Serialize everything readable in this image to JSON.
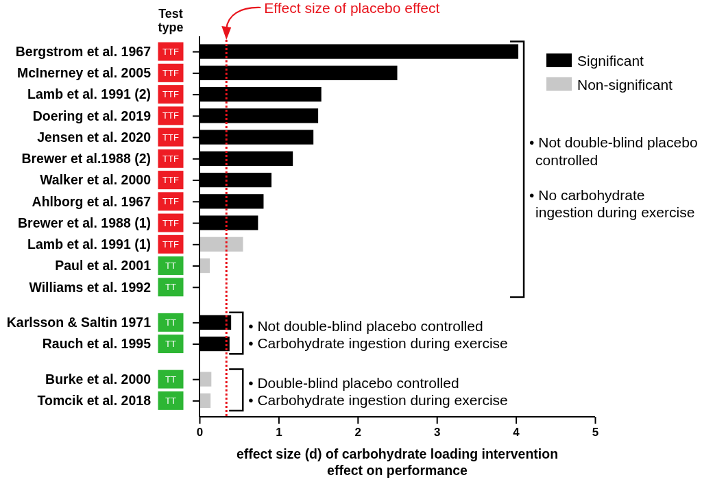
{
  "chart_data": {
    "type": "bar",
    "orientation": "horizontal",
    "stacked": true,
    "categories": [
      "Bergstrom et al. 1967",
      "McInerney et al. 2005",
      "Lamb et al. 1991 (2)",
      "Doering et al. 2019",
      "Jensen et al. 2020",
      "Brewer et al.1988 (2)",
      "Walker et al. 2000",
      "Ahlborg et al. 1967",
      "Brewer et al. 1988 (1)",
      "Lamb et al. 1991 (1)",
      "Paul et al. 2001",
      "Williams et al. 1992",
      null,
      "Karlsson & Saltin 1971",
      "Rauch et al. 1995",
      null,
      "Burke et al. 2000",
      "Tomcik et al. 2018"
    ],
    "y2_categories": [
      "TTF",
      "TTF",
      "TTF",
      "TTF",
      "TTF",
      "TTF",
      "TTF",
      "TTF",
      "TTF",
      "TTF",
      "TT",
      "TT",
      null,
      "TT",
      "TT",
      null,
      "TT",
      "TT"
    ],
    "y2label": "Test type",
    "series": [
      {
        "name": "Significant",
        "color": "#000000",
        "values": [
          4.03,
          2.5,
          1.54,
          1.5,
          1.44,
          1.18,
          0.91,
          0.81,
          0.74,
          null,
          null,
          null,
          null,
          0.4,
          0.38,
          null,
          null,
          null
        ]
      },
      {
        "name": "Non-significant",
        "color": "#c8c8c8",
        "values": [
          null,
          null,
          null,
          null,
          null,
          null,
          null,
          null,
          null,
          0.55,
          0.13,
          null,
          null,
          null,
          null,
          null,
          0.15,
          0.14
        ]
      }
    ],
    "xlim": [
      0,
      5
    ],
    "xticks": [
      0,
      1,
      2,
      3,
      4,
      5
    ],
    "xlabel": "effect size (d) of carbohydrate loading intervention effect on performance",
    "ref_lines": [
      {
        "axis": "x",
        "value": 0.34,
        "label": "Effect size of placebo effect",
        "color": "#e8141c",
        "line_style": "dotted"
      }
    ],
    "annotations": [
      "• Not double-blind placebo controlled",
      "• No carbohydrate ingestion during exercise",
      "• Not double-blind placebo controlled",
      "• Carbohydrate ingestion during exercise",
      "• Double-blind placebo controlled",
      "• Carbohydrate ingestion during exercise"
    ],
    "legend": "top right"
  }
}
